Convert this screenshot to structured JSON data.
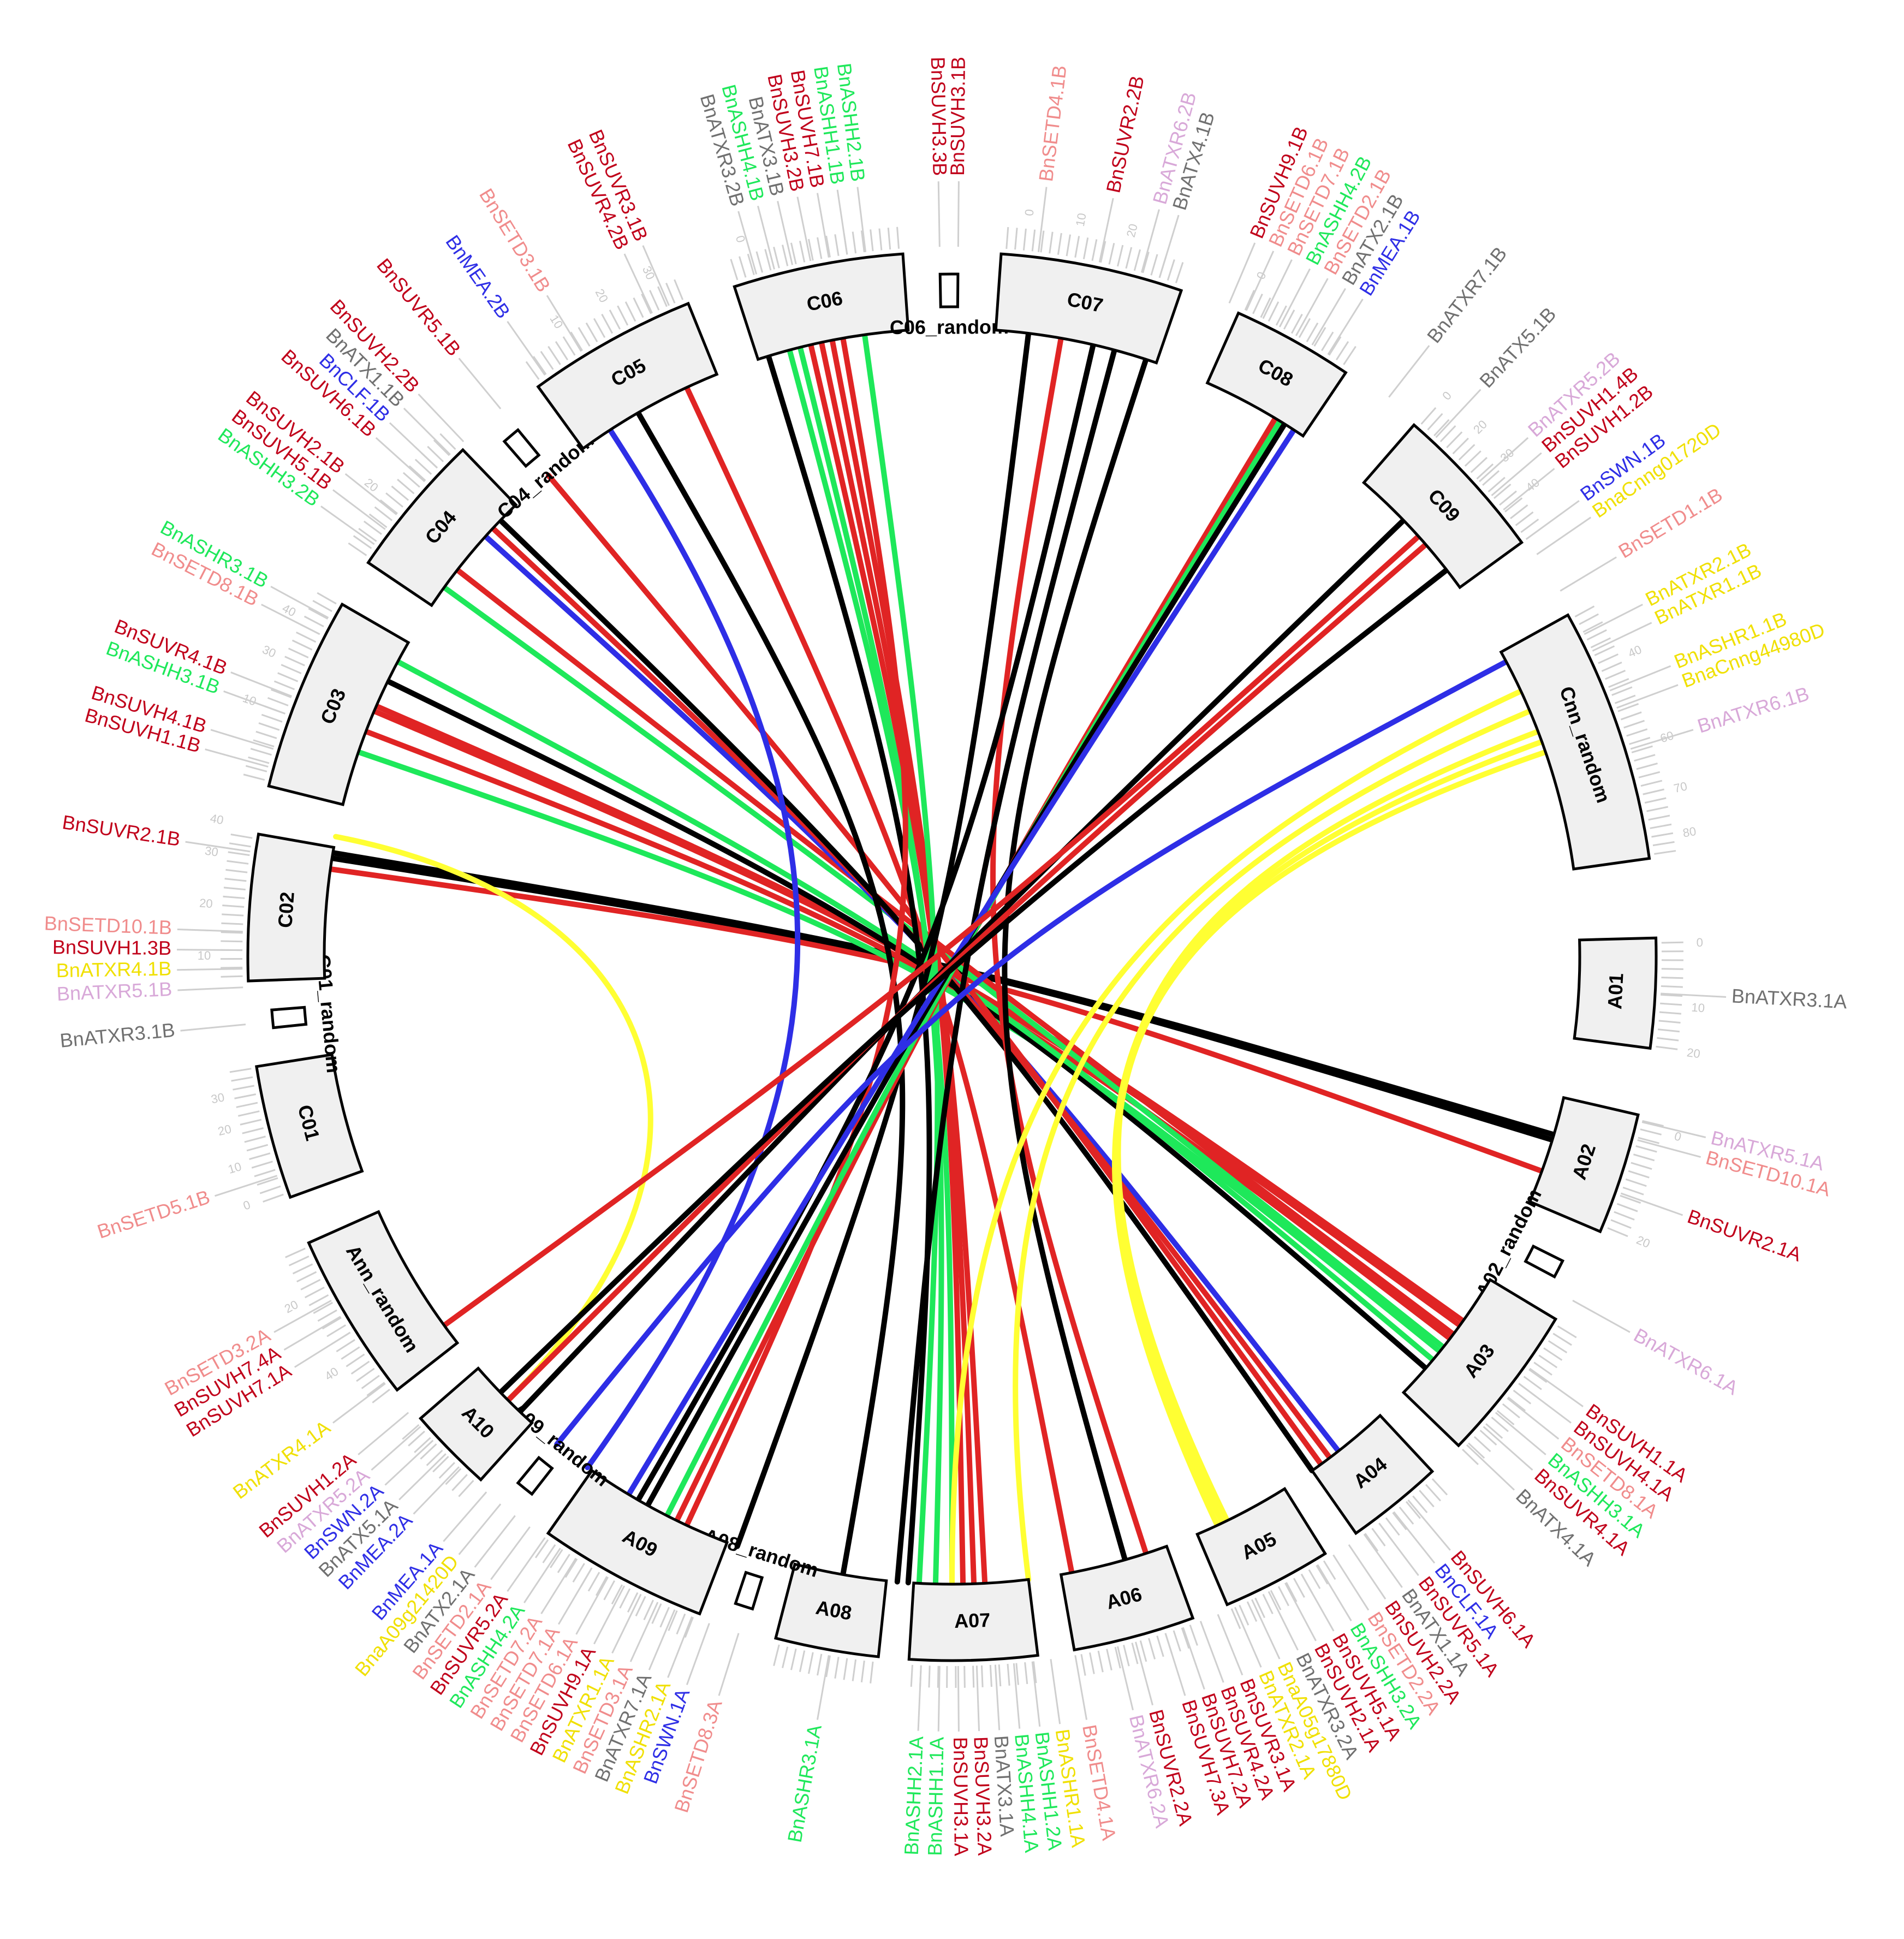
{
  "colors": {
    "red": "#e02424",
    "darkred": "#c0001a",
    "black": "#000000",
    "green": "#1ee85a",
    "blue": "#2e2ee6",
    "yellow": "#ffff33",
    "pink": "#f08c8c",
    "lavender": "#d8a8d8",
    "gray": "#707070",
    "ygene": "#f0e000",
    "ticks": "#cfcfcf"
  },
  "chromosomes": [
    {
      "id": "A01",
      "label": "A01",
      "type": "chrom",
      "start": 88.5,
      "end": 97.5
    },
    {
      "id": "A02",
      "label": "A02",
      "type": "chrom",
      "start": 103,
      "end": 113
    },
    {
      "id": "A02r",
      "label": "A02_random",
      "type": "rand",
      "start": 116.5,
      "end": 118
    },
    {
      "id": "A03",
      "label": "A03",
      "type": "chrom",
      "start": 121,
      "end": 134
    },
    {
      "id": "A04",
      "label": "A04",
      "type": "chrom",
      "start": 137,
      "end": 145
    },
    {
      "id": "A05",
      "label": "A05",
      "type": "chrom",
      "start": 148,
      "end": 157
    },
    {
      "id": "A06",
      "label": "A06",
      "type": "chrom",
      "start": 160,
      "end": 170
    },
    {
      "id": "A07",
      "label": "A07",
      "type": "chrom",
      "start": 173,
      "end": 183.5
    },
    {
      "id": "A08",
      "label": "A08",
      "type": "chrom",
      "start": 186,
      "end": 194.5
    },
    {
      "id": "A08r",
      "label": "A08_random",
      "type": "rand",
      "start": 197,
      "end": 198.5
    },
    {
      "id": "A09",
      "label": "A09",
      "type": "chrom",
      "start": 201,
      "end": 215
    },
    {
      "id": "A09r",
      "label": "A09_random",
      "type": "rand",
      "start": 218,
      "end": 219.5
    },
    {
      "id": "A10",
      "label": "A10",
      "type": "chrom",
      "start": 222,
      "end": 229
    },
    {
      "id": "Annr",
      "label": "Ann_random",
      "type": "chrom",
      "start": 232,
      "end": 246
    },
    {
      "id": "C01",
      "label": "C01",
      "type": "chrom",
      "start": 250,
      "end": 261
    },
    {
      "id": "C01r",
      "label": "C01_random",
      "type": "rand",
      "start": 264,
      "end": 265.5
    },
    {
      "id": "C02",
      "label": "C02",
      "type": "chrom",
      "start": 268,
      "end": 280
    },
    {
      "id": "C03",
      "label": "C03",
      "type": "chrom",
      "start": 284,
      "end": 300
    },
    {
      "id": "C04",
      "label": "C04",
      "type": "chrom",
      "start": 304,
      "end": 316
    },
    {
      "id": "C04r",
      "label": "C04_random",
      "type": "rand",
      "start": 319,
      "end": 320.5
    },
    {
      "id": "C05",
      "label": "C05",
      "type": "chrom",
      "start": 324,
      "end": 338
    },
    {
      "id": "C06",
      "label": "C06",
      "type": "chrom",
      "start": 342,
      "end": 356
    },
    {
      "id": "C06r",
      "label": "C06_random",
      "type": "rand",
      "start": 359,
      "end": 360.5
    },
    {
      "id": "C07",
      "label": "C07",
      "type": "chrom",
      "start": 4,
      "end": 19
    },
    {
      "id": "C08",
      "label": "C08",
      "type": "chrom",
      "start": 24,
      "end": 34
    },
    {
      "id": "C09",
      "label": "C09",
      "type": "chrom",
      "start": 41,
      "end": 54
    },
    {
      "id": "Cnnr",
      "label": "Cnn_random",
      "type": "chrom",
      "start": 61,
      "end": 82
    }
  ],
  "scale_ticks": [
    {
      "angle": 89,
      "text": "0"
    },
    {
      "angle": 94,
      "text": "10"
    },
    {
      "angle": 97.5,
      "text": "20"
    },
    {
      "angle": 104,
      "text": "0"
    },
    {
      "angle": 112.5,
      "text": "20"
    },
    {
      "angle": 250.5,
      "text": "0"
    },
    {
      "angle": 253.5,
      "text": "10"
    },
    {
      "angle": 256.5,
      "text": "20"
    },
    {
      "angle": 259,
      "text": "30"
    },
    {
      "angle": 270,
      "text": "10"
    },
    {
      "angle": 274,
      "text": "20"
    },
    {
      "angle": 278,
      "text": "30"
    },
    {
      "angle": 280.5,
      "text": "40"
    },
    {
      "angle": 290,
      "text": "10"
    },
    {
      "angle": 294,
      "text": "30"
    },
    {
      "angle": 297.5,
      "text": "40"
    },
    {
      "angle": 309,
      "text": "20"
    },
    {
      "angle": 328,
      "text": "10"
    },
    {
      "angle": 332,
      "text": "20"
    },
    {
      "angle": 336,
      "text": "30"
    },
    {
      "angle": 343.5,
      "text": "0"
    },
    {
      "angle": 6,
      "text": "0"
    },
    {
      "angle": 10,
      "text": "10"
    },
    {
      "angle": 14,
      "text": "20"
    },
    {
      "angle": 24.5,
      "text": "0"
    },
    {
      "angle": 41.5,
      "text": "0"
    },
    {
      "angle": 45,
      "text": "20"
    },
    {
      "angle": 48,
      "text": "30"
    },
    {
      "angle": 51,
      "text": "40"
    },
    {
      "angle": 66,
      "text": "40"
    },
    {
      "angle": 73,
      "text": "60"
    },
    {
      "angle": 77,
      "text": "70"
    },
    {
      "angle": 80.5,
      "text": "80"
    },
    {
      "angle": 236,
      "text": "40"
    },
    {
      "angle": 242,
      "text": "20"
    }
  ],
  "genes": [
    {
      "text": "BnATXR3.1A",
      "angle": 93,
      "color": "gray"
    },
    {
      "text": "BnATXR5.1A",
      "angle": 103.5,
      "color": "lavender"
    },
    {
      "text": "BnSETD10.1A",
      "angle": 105,
      "color": "pink"
    },
    {
      "text": "BnSUVR2.1A",
      "angle": 109.5,
      "color": "darkred"
    },
    {
      "text": "BnATXR6.1A",
      "angle": 119,
      "color": "lavender"
    },
    {
      "text": "BnSUVH1.1A",
      "angle": 125.5,
      "color": "darkred"
    },
    {
      "text": "BnSUVH4.1A",
      "angle": 127,
      "color": "darkred"
    },
    {
      "text": "BnSETD8.1A",
      "angle": 128.5,
      "color": "pink"
    },
    {
      "text": "BnASHH3.1A",
      "angle": 130,
      "color": "green"
    },
    {
      "text": "BnSUVR4.1A",
      "angle": 131.5,
      "color": "darkred"
    },
    {
      "text": "BnATX4.1A",
      "angle": 133.5,
      "color": "gray"
    },
    {
      "text": "BnSUVH6.1A",
      "angle": 140,
      "color": "darkred"
    },
    {
      "text": "BnCLF.1A",
      "angle": 141.5,
      "color": "blue"
    },
    {
      "text": "BnSUVR5.1A",
      "angle": 143,
      "color": "darkred"
    },
    {
      "text": "BnATX1.1A",
      "angle": 144.5,
      "color": "gray"
    },
    {
      "text": "BnSUVH2.2A",
      "angle": 146,
      "color": "darkred"
    },
    {
      "text": "BnSETD2.2A",
      "angle": 147.5,
      "color": "pink"
    },
    {
      "text": "BnASHH3.2A",
      "angle": 149,
      "color": "green"
    },
    {
      "text": "BnSUVH5.1A",
      "angle": 150.5,
      "color": "darkred"
    },
    {
      "text": "BnSUVH2.1A",
      "angle": 152,
      "color": "darkred"
    },
    {
      "text": "BnATXR3.2A",
      "angle": 153.5,
      "color": "gray"
    },
    {
      "text": "BnaA05g17880D",
      "angle": 155,
      "color": "ygene"
    },
    {
      "text": "BnATXR2.1A",
      "angle": 156.5,
      "color": "ygene"
    },
    {
      "text": "BnSUVR3.1A",
      "angle": 158,
      "color": "darkred"
    },
    {
      "text": "BnSUVR4.2A",
      "angle": 159.5,
      "color": "darkred"
    },
    {
      "text": "BnSUVH7.2A",
      "angle": 161,
      "color": "darkred"
    },
    {
      "text": "BnSUVH7.3A",
      "angle": 162.5,
      "color": "darkred"
    },
    {
      "text": "BnSUVR2.2A",
      "angle": 165,
      "color": "darkred"
    },
    {
      "text": "BnATXR6.2A",
      "angle": 166.5,
      "color": "lavender"
    },
    {
      "text": "BnSETD4.1A",
      "angle": 170,
      "color": "pink"
    },
    {
      "text": "BnASHR1.1A",
      "angle": 172,
      "color": "ygene"
    },
    {
      "text": "BnASHH1.2A",
      "angle": 173.5,
      "color": "green"
    },
    {
      "text": "BnASHH4.1A",
      "angle": 175,
      "color": "green"
    },
    {
      "text": "BnATX3.1A",
      "angle": 176.5,
      "color": "gray"
    },
    {
      "text": "BnSUVH3.2A",
      "angle": 178,
      "color": "darkred"
    },
    {
      "text": "BnSUVH3.1A",
      "angle": 179.5,
      "color": "darkred"
    },
    {
      "text": "BnASHH1.1A",
      "angle": 181,
      "color": "green"
    },
    {
      "text": "BnASHH2.1A",
      "angle": 182.5,
      "color": "green"
    },
    {
      "text": "BnASHR3.1A",
      "angle": 190,
      "color": "green"
    },
    {
      "text": "BnSETD8.3A",
      "angle": 197.5,
      "color": "pink"
    },
    {
      "text": "BnSWN.1A",
      "angle": 200,
      "color": "blue"
    },
    {
      "text": "BnASHR2.1A",
      "angle": 201.5,
      "color": "ygene"
    },
    {
      "text": "BnATXR7.1A",
      "angle": 203,
      "color": "gray"
    },
    {
      "text": "BnSETD3.1A",
      "angle": 204.5,
      "color": "pink"
    },
    {
      "text": "BnATXR1.1A",
      "angle": 206,
      "color": "ygene"
    },
    {
      "text": "BnSUVH9.1A",
      "angle": 207.5,
      "color": "darkred"
    },
    {
      "text": "BnSETD6.1A",
      "angle": 209,
      "color": "pink"
    },
    {
      "text": "BnSETD7.1A",
      "angle": 210.5,
      "color": "pink"
    },
    {
      "text": "BnSETD7.2A",
      "angle": 212,
      "color": "pink"
    },
    {
      "text": "BnASHH4.2A",
      "angle": 213.5,
      "color": "green"
    },
    {
      "text": "BnSUVR5.2A",
      "angle": 215,
      "color": "darkred"
    },
    {
      "text": "BnSETD2.1A",
      "angle": 216.5,
      "color": "pink"
    },
    {
      "text": "BnATX2.1A",
      "angle": 218,
      "color": "gray"
    },
    {
      "text": "BnaA09g21420D",
      "angle": 219.5,
      "color": "ygene"
    },
    {
      "text": "BnMEA.1A",
      "angle": 221,
      "color": "blue"
    },
    {
      "text": "BnMEA.2A",
      "angle": 224,
      "color": "blue"
    },
    {
      "text": "BnATX5.1A",
      "angle": 225.5,
      "color": "gray"
    },
    {
      "text": "BnSWN.2A",
      "angle": 227,
      "color": "blue"
    },
    {
      "text": "BnATXR5.2A",
      "angle": 228.5,
      "color": "lavender"
    },
    {
      "text": "BnSUVH1.2A",
      "angle": 230,
      "color": "darkred"
    },
    {
      "text": "BnATXR4.1A",
      "angle": 233,
      "color": "ygene"
    },
    {
      "text": "BnSUVH7.1A",
      "angle": 238,
      "color": "darkred"
    },
    {
      "text": "BnSUVH7.4A",
      "angle": 239.5,
      "color": "darkred"
    },
    {
      "text": "BnSETD3.2A",
      "angle": 241,
      "color": "pink"
    },
    {
      "text": "BnSETD5.1B",
      "angle": 252,
      "color": "pink"
    },
    {
      "text": "BnATXR3.1B",
      "angle": 264.5,
      "color": "gray"
    },
    {
      "text": "BnATXR5.1B",
      "angle": 267.5,
      "color": "lavender"
    },
    {
      "text": "BnATXR4.1B",
      "angle": 269,
      "color": "ygene"
    },
    {
      "text": "BnSUVH1.3B",
      "angle": 270.5,
      "color": "darkred"
    },
    {
      "text": "BnSETD10.1B",
      "angle": 272,
      "color": "pink"
    },
    {
      "text": "BnSUVR2.1B",
      "angle": 278.5,
      "color": "darkred"
    },
    {
      "text": "BnSUVH1.1B",
      "angle": 285.5,
      "color": "darkred"
    },
    {
      "text": "BnSUVH4.1B",
      "angle": 287,
      "color": "darkred"
    },
    {
      "text": "BnASHH3.1B",
      "angle": 290,
      "color": "green"
    },
    {
      "text": "BnSUVR4.1B",
      "angle": 291.5,
      "color": "darkred"
    },
    {
      "text": "BnSETD8.1B",
      "angle": 297,
      "color": "pink"
    },
    {
      "text": "BnASHR3.1B",
      "angle": 298.5,
      "color": "green"
    },
    {
      "text": "BnASHH3.2B",
      "angle": 305.5,
      "color": "green"
    },
    {
      "text": "BnSUVH5.1B",
      "angle": 307,
      "color": "darkred"
    },
    {
      "text": "BnSUVH2.1B",
      "angle": 308.5,
      "color": "darkred"
    },
    {
      "text": "BnSUVH6.1B",
      "angle": 312,
      "color": "darkred"
    },
    {
      "text": "BnCLF.1B",
      "angle": 313.5,
      "color": "blue"
    },
    {
      "text": "BnATX1.1B",
      "angle": 315,
      "color": "gray"
    },
    {
      "text": "BnSUVH2.2B",
      "angle": 316.5,
      "color": "darkred"
    },
    {
      "text": "BnSUVR5.1B",
      "angle": 320.5,
      "color": "darkred"
    },
    {
      "text": "BnMEA.2B",
      "angle": 325,
      "color": "blue"
    },
    {
      "text": "BnSETD3.1B",
      "angle": 328.5,
      "color": "pink"
    },
    {
      "text": "BnSUVR4.2B",
      "angle": 335,
      "color": "darkred"
    },
    {
      "text": "BnSUVR3.1B",
      "angle": 336.5,
      "color": "darkred"
    },
    {
      "text": "BnATXR3.2B",
      "angle": 344,
      "color": "gray"
    },
    {
      "text": "BnASHH4.1B",
      "angle": 345.5,
      "color": "green"
    },
    {
      "text": "BnATX3.1B",
      "angle": 347,
      "color": "gray"
    },
    {
      "text": "BnSUVH3.2B",
      "angle": 348.5,
      "color": "darkred"
    },
    {
      "text": "BnSUVH7.1B",
      "angle": 350,
      "color": "darkred"
    },
    {
      "text": "BnASHH1.1B",
      "angle": 351.5,
      "color": "green"
    },
    {
      "text": "BnASHH2.1B",
      "angle": 353,
      "color": "green"
    },
    {
      "text": "BnSUVH3.3B",
      "angle": 359,
      "color": "darkred"
    },
    {
      "text": "BnSUVH3.1B",
      "angle": 0.5,
      "color": "darkred"
    },
    {
      "text": "BnSETD4.1B",
      "angle": 7,
      "color": "pink"
    },
    {
      "text": "BnSUVR2.2B",
      "angle": 12,
      "color": "darkred"
    },
    {
      "text": "BnATXR6.2B",
      "angle": 15.5,
      "color": "lavender"
    },
    {
      "text": "BnATX4.1B",
      "angle": 17,
      "color": "gray"
    },
    {
      "text": "BnSUVH9.1B",
      "angle": 23,
      "color": "darkred"
    },
    {
      "text": "BnSETD6.1B",
      "angle": 24.5,
      "color": "pink"
    },
    {
      "text": "BnSETD7.1B",
      "angle": 26,
      "color": "pink"
    },
    {
      "text": "BnASHH4.2B",
      "angle": 27.5,
      "color": "green"
    },
    {
      "text": "BnSETD2.1B",
      "angle": 29,
      "color": "pink"
    },
    {
      "text": "BnATX2.1B",
      "angle": 30.5,
      "color": "gray"
    },
    {
      "text": "BnMEA.1B",
      "angle": 32,
      "color": "blue"
    },
    {
      "text": "BnATXR7.1B",
      "angle": 38,
      "color": "gray"
    },
    {
      "text": "BnATX5.1B",
      "angle": 43,
      "color": "gray"
    },
    {
      "text": "BnATXR5.2B",
      "angle": 48,
      "color": "lavender"
    },
    {
      "text": "BnSUVH1.4B",
      "angle": 49.5,
      "color": "darkred"
    },
    {
      "text": "BnSUVH1.2B",
      "angle": 51,
      "color": "darkred"
    },
    {
      "text": "BnSWN.1B",
      "angle": 54,
      "color": "blue"
    },
    {
      "text": "BnaCnng01720D",
      "angle": 55.5,
      "color": "ygene"
    },
    {
      "text": "BnSETD1.1B",
      "angle": 59,
      "color": "pink"
    },
    {
      "text": "BnATXR2.1B",
      "angle": 63,
      "color": "ygene"
    },
    {
      "text": "BnATXR1.1B",
      "angle": 64.5,
      "color": "ygene"
    },
    {
      "text": "BnASHR1.1B",
      "angle": 68,
      "color": "ygene"
    },
    {
      "text": "BnaCnng44980D",
      "angle": 69.5,
      "color": "ygene"
    },
    {
      "text": "BnATXR6.1B",
      "angle": 73,
      "color": "lavender"
    }
  ],
  "links": [
    {
      "a": 279,
      "b": 107,
      "color": "black"
    },
    {
      "a": 279.5,
      "b": 106.5,
      "color": "black"
    },
    {
      "a": 278,
      "b": 110,
      "color": "red"
    },
    {
      "a": 281,
      "b": 225,
      "color": "yellow"
    },
    {
      "a": 293,
      "b": 126,
      "color": "red"
    },
    {
      "a": 293.5,
      "b": 125.5,
      "color": "red"
    },
    {
      "a": 291,
      "b": 127.5,
      "color": "red"
    },
    {
      "a": 289,
      "b": 129,
      "color": "green"
    },
    {
      "a": 296,
      "b": 131,
      "color": "black"
    },
    {
      "a": 298,
      "b": 130,
      "color": "green"
    },
    {
      "a": 306,
      "b": 128.5,
      "color": "green"
    },
    {
      "a": 308,
      "b": 127,
      "color": "red"
    },
    {
      "a": 312,
      "b": 142,
      "color": "blue"
    },
    {
      "a": 313,
      "b": 143,
      "color": "red"
    },
    {
      "a": 314,
      "b": 145,
      "color": "black"
    },
    {
      "a": 320,
      "b": 144,
      "color": "red"
    },
    {
      "a": 327,
      "b": 215.5,
      "color": "blue"
    },
    {
      "a": 330,
      "b": 190,
      "color": "black"
    },
    {
      "a": 335,
      "b": 169,
      "color": "red"
    },
    {
      "a": 343,
      "b": 184,
      "color": "black"
    },
    {
      "a": 345,
      "b": 180,
      "color": "green"
    },
    {
      "a": 346,
      "b": 181.5,
      "color": "green"
    },
    {
      "a": 347,
      "b": 178,
      "color": "red"
    },
    {
      "a": 348,
      "b": 177,
      "color": "red"
    },
    {
      "a": 349,
      "b": 179,
      "color": "red"
    },
    {
      "a": 350,
      "b": 205,
      "color": "red"
    },
    {
      "a": 352,
      "b": 183,
      "color": "green"
    },
    {
      "a": 7,
      "b": 200,
      "color": "black"
    },
    {
      "a": 10,
      "b": 162,
      "color": "red"
    },
    {
      "a": 13,
      "b": 210,
      "color": "black"
    },
    {
      "a": 15,
      "b": 185,
      "color": "black"
    },
    {
      "a": 18,
      "b": 164,
      "color": "black"
    },
    {
      "a": 31,
      "b": 206,
      "color": "red"
    },
    {
      "a": 31.5,
      "b": 207,
      "color": "green"
    },
    {
      "a": 32,
      "b": 209,
      "color": "black"
    },
    {
      "a": 33,
      "b": 211,
      "color": "blue"
    },
    {
      "a": 46,
      "b": 223.5,
      "color": "black"
    },
    {
      "a": 48,
      "b": 234,
      "color": "red"
    },
    {
      "a": 49,
      "b": 225,
      "color": "red"
    },
    {
      "a": 52,
      "b": 226,
      "color": "black"
    },
    {
      "a": 62,
      "b": 219,
      "color": "blue"
    },
    {
      "a": 65,
      "b": 180,
      "color": "yellow"
    },
    {
      "a": 67,
      "b": 173,
      "color": "yellow"
    },
    {
      "a": 69,
      "b": 154,
      "color": "yellow"
    },
    {
      "a": 70,
      "b": 155,
      "color": "yellow"
    },
    {
      "a": 71,
      "b": 154.5,
      "color": "yellow"
    }
  ]
}
